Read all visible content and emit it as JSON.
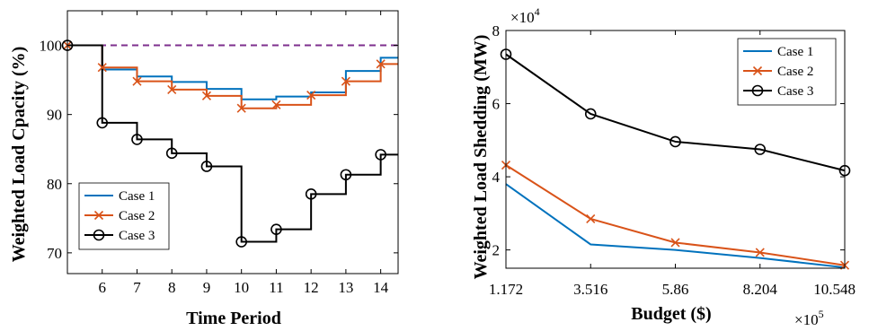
{
  "charts": [
    {
      "type": "line",
      "xlabel": "Time Period",
      "ylabel": "Weighted Load Cpacity (%)",
      "xlim": [
        5,
        14.5
      ],
      "ylim": [
        67,
        105
      ],
      "xticks": [
        6,
        7,
        8,
        9,
        10,
        11,
        12,
        13,
        14
      ],
      "yticks": [
        70,
        80,
        90,
        100
      ],
      "step": true,
      "reference_line": {
        "y": 100,
        "color": "#7E2F8E",
        "style": "dashed"
      },
      "legend": {
        "placement": "bottom-left"
      },
      "series": [
        {
          "name": "Case 1",
          "color": "#0072BD",
          "marker": "none",
          "x": [
            5,
            6,
            7,
            8,
            9,
            10,
            11,
            12,
            13,
            14
          ],
          "y": [
            100,
            96.5,
            95.5,
            94.7,
            93.7,
            92.2,
            92.6,
            93.2,
            96.3,
            98.2
          ]
        },
        {
          "name": "Case 2",
          "color": "#D95319",
          "marker": "x",
          "x": [
            5,
            6,
            7,
            8,
            9,
            10,
            11,
            12,
            13,
            14
          ],
          "y": [
            100,
            96.8,
            94.8,
            93.6,
            92.7,
            90.9,
            91.4,
            92.8,
            94.8,
            97.3
          ]
        },
        {
          "name": "Case 3",
          "color": "#000000",
          "marker": "o",
          "x": [
            5,
            6,
            7,
            8,
            9,
            10,
            11,
            12,
            13,
            14
          ],
          "y": [
            100,
            88.8,
            86.4,
            84.4,
            82.5,
            71.6,
            73.4,
            78.5,
            81.3,
            84.2
          ]
        }
      ]
    },
    {
      "type": "line",
      "xlabel": "Budget ($)",
      "ylabel": "Weighted Load Shedding (MW)",
      "x_exponent": "×10",
      "x_exponent_power": "5",
      "y_exponent": "×10",
      "y_exponent_power": "4",
      "xlim": [
        1.172,
        10.548
      ],
      "ylim": [
        1.5,
        8
      ],
      "xticks": [
        1.172,
        3.516,
        5.86,
        8.204,
        10.548
      ],
      "xtick_labels": [
        "1.172",
        "3.516",
        "5.86",
        "8.204",
        "10.548"
      ],
      "yticks": [
        2,
        4,
        6,
        8
      ],
      "legend": {
        "placement": "top-right"
      },
      "series": [
        {
          "name": "Case 1",
          "color": "#0072BD",
          "marker": "none",
          "x": [
            1.172,
            3.516,
            5.86,
            8.204,
            10.548
          ],
          "y": [
            3.8,
            2.15,
            2.0,
            1.78,
            1.52
          ]
        },
        {
          "name": "Case 2",
          "color": "#D95319",
          "marker": "x",
          "x": [
            1.172,
            3.516,
            5.86,
            8.204,
            10.548
          ],
          "y": [
            4.32,
            2.85,
            2.2,
            1.93,
            1.58
          ]
        },
        {
          "name": "Case 3",
          "color": "#000000",
          "marker": "o",
          "x": [
            1.172,
            3.516,
            5.86,
            8.204,
            10.548
          ],
          "y": [
            7.35,
            5.72,
            4.96,
            4.75,
            4.17
          ]
        }
      ]
    }
  ]
}
